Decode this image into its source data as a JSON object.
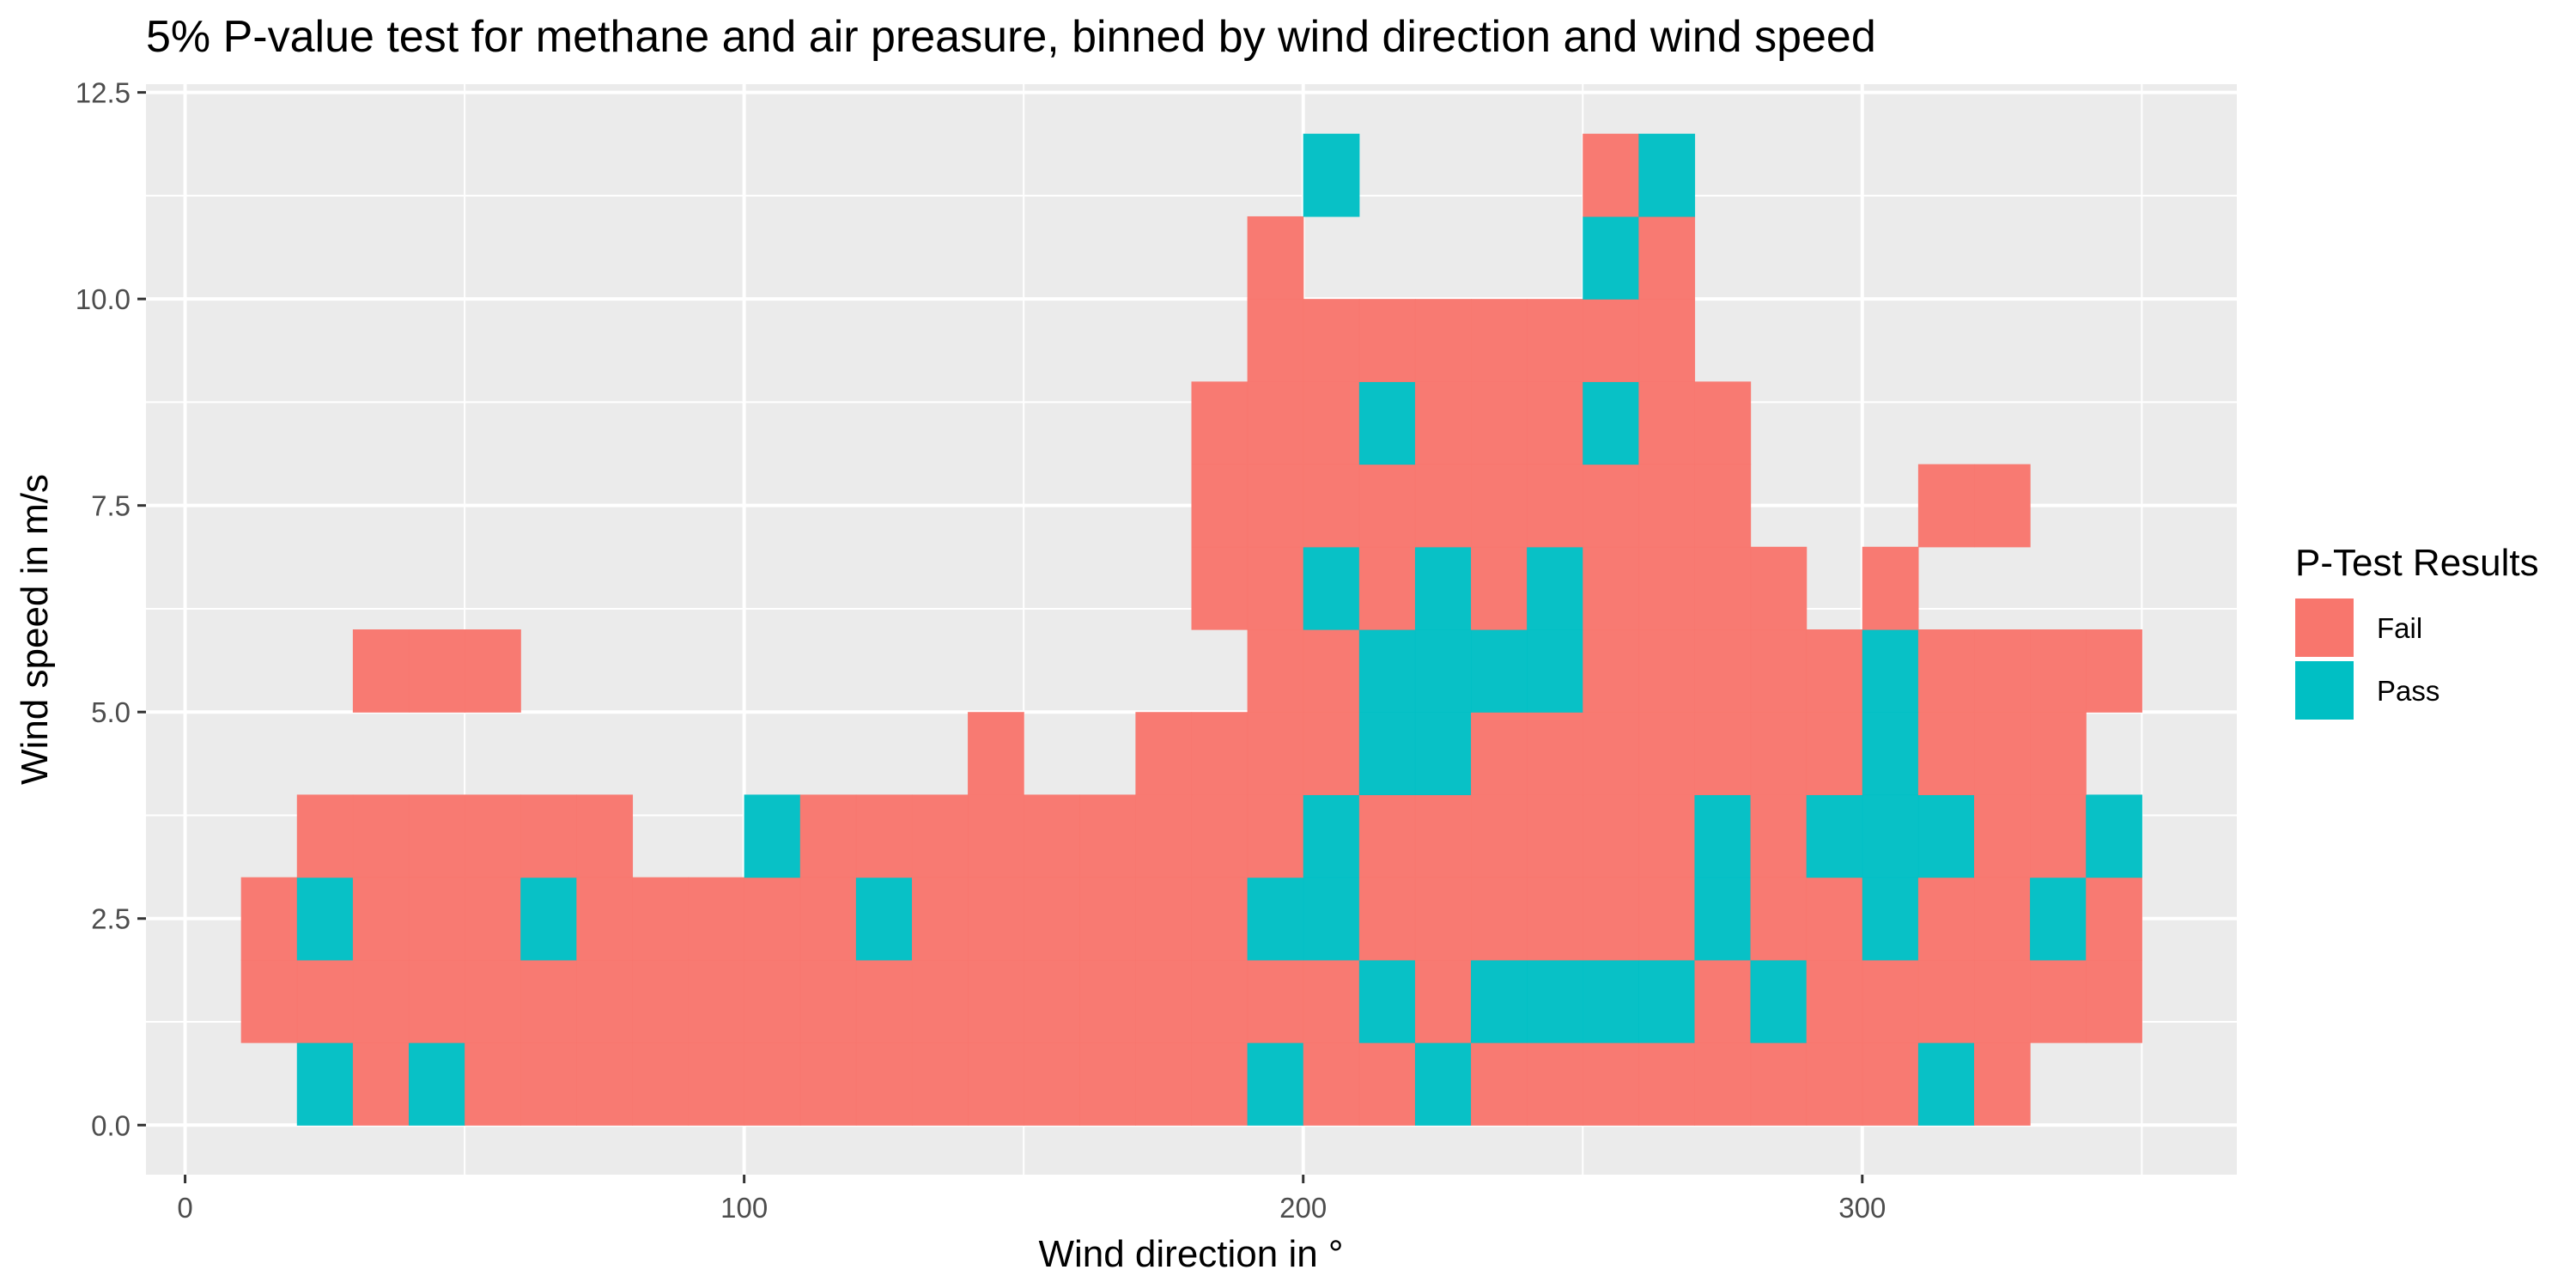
{
  "chart_data": {
    "type": "heatmap",
    "title": "5% P-value test for methane and air preasure, binned by wind direction and wind speed",
    "xlabel": "Wind direction in °",
    "ylabel": "Wind speed in m/s",
    "xlim": [
      -7,
      367
    ],
    "ylim": [
      -0.6,
      12.6
    ],
    "x_ticks": [
      0,
      100,
      200,
      300
    ],
    "y_ticks": [
      0.0,
      2.5,
      5.0,
      7.5,
      10.0,
      12.5
    ],
    "x_tick_labels": [
      "0",
      "100",
      "200",
      "300"
    ],
    "y_tick_labels": [
      "0.0",
      "2.5",
      "5.0",
      "7.5",
      "10.0",
      "12.5"
    ],
    "x_bin_width": 10,
    "y_bin_height": 1,
    "legend": {
      "title": "P-Test Results",
      "position": "right",
      "entries": [
        {
          "label": "Fail",
          "color": "#F8766D"
        },
        {
          "label": "Pass",
          "color": "#00BFC4"
        }
      ]
    },
    "background": "#EBEBEB",
    "grid_color": "#FFFFFF",
    "cells_note": "Each row string covers wind-direction bins starting at 0 degrees (10 degrees wide). F = Fail, P = Pass, . = no data. Row y value is the bottom of a 1 m/s bin.",
    "rows": [
      {
        "y": 0,
        "bins": "..PFPFFFFFFFFFFFFFFPFFPFFFFFFFFPF.."
      },
      {
        "y": 1,
        "bins": ".FFFFFFFFFFFFFFFFFFFFPFPPPPFPFFFFFF"
      },
      {
        "y": 2,
        "bins": ".FPFFFPFFFFFPFFFFFFPPFFFFFFPFFPFFPF"
      },
      {
        "y": 3,
        "bins": "..FFFFFF..PFFFFFFFFFPFFFFFFPFPPPFFP"
      },
      {
        "y": 4,
        "bins": "..............F..FFFFPPFFFFFFFPFFF."
      },
      {
        "y": 5,
        "bins": "...FFF.............FFPPPPFFFFFPFFFF"
      },
      {
        "y": 6,
        "bins": "..................FFPFPFPFFFF.F...."
      },
      {
        "y": 7,
        "bins": "..................FFFFFFFFFF...FF.."
      },
      {
        "y": 8,
        "bins": "..................FFFPFFFPFF......."
      },
      {
        "y": 9,
        "bins": "...................FFFFFFFF........"
      },
      {
        "y": 10,
        "bins": "...................F.....PF........"
      },
      {
        "y": 11,
        "bins": "....................P....FP........"
      }
    ]
  }
}
